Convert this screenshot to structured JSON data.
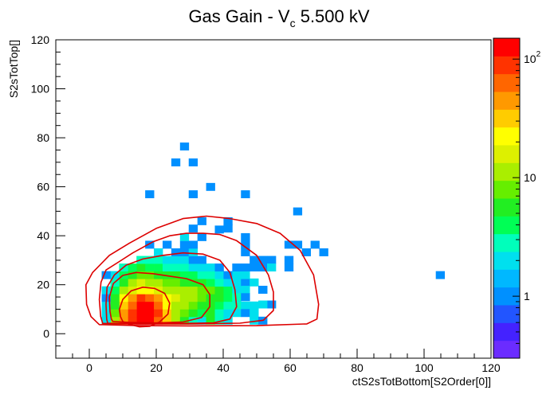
{
  "chart_data": {
    "type": "heatmap",
    "title": {
      "prefix": "Gas Gain - V",
      "subscript": "c",
      "suffix": " 5.500 kV"
    },
    "xlabel": "ctS2sTotBottom[S2Order[0]]",
    "ylabel": "S2sTotTop[]",
    "xlim": [
      -10,
      120
    ],
    "ylim": [
      -10,
      120
    ],
    "x_ticks": [
      0,
      20,
      40,
      60,
      80,
      100,
      120
    ],
    "y_ticks": [
      0,
      20,
      40,
      60,
      80,
      100,
      120
    ],
    "bin_size": [
      2.6,
      3.1
    ],
    "z_scale": "log",
    "z_range": [
      0.3,
      150
    ],
    "z_ticks": [
      {
        "base": "1",
        "exp": ""
      },
      {
        "base": "10",
        "exp": ""
      },
      {
        "base": "10",
        "exp": "2"
      }
    ],
    "palette": [
      "#6b2cff",
      "#4422ff",
      "#2255ff",
      "#0090ff",
      "#00b8ff",
      "#00e0ee",
      "#00ffbb",
      "#00ff55",
      "#22ee22",
      "#66ee00",
      "#aaee00",
      "#ddf000",
      "#ffff00",
      "#ffcc00",
      "#ff9900",
      "#ff6600",
      "#ff3300",
      "#ff0000"
    ],
    "contour_color": "#dd0000",
    "cells": [
      [
        15.4,
        5.4,
        120
      ],
      [
        18,
        5.4,
        110
      ],
      [
        12.8,
        5.4,
        90
      ],
      [
        20.6,
        5.4,
        60
      ],
      [
        10.2,
        5.4,
        40
      ],
      [
        23.2,
        5.4,
        30
      ],
      [
        7.6,
        5.4,
        10
      ],
      [
        25.8,
        5.4,
        12
      ],
      [
        28.4,
        5.4,
        5
      ],
      [
        5,
        5.4,
        2
      ],
      [
        31,
        5.4,
        3
      ],
      [
        33.6,
        5.4,
        2
      ],
      [
        36.2,
        5.4,
        6
      ],
      [
        38.8,
        5.4,
        3
      ],
      [
        41.4,
        5.4,
        2
      ],
      [
        15.4,
        8.5,
        150
      ],
      [
        18,
        8.5,
        130
      ],
      [
        12.8,
        8.5,
        100
      ],
      [
        20.6,
        8.5,
        80
      ],
      [
        10.2,
        8.5,
        40
      ],
      [
        23.2,
        8.5,
        30
      ],
      [
        7.6,
        8.5,
        8
      ],
      [
        25.8,
        8.5,
        12
      ],
      [
        28.4,
        8.5,
        8
      ],
      [
        31,
        8.5,
        6
      ],
      [
        33.6,
        8.5,
        4
      ],
      [
        36.2,
        8.5,
        5
      ],
      [
        38.8,
        8.5,
        3
      ],
      [
        41.4,
        8.5,
        2
      ],
      [
        5,
        8.5,
        2
      ],
      [
        15.4,
        11.6,
        130
      ],
      [
        18,
        11.6,
        110
      ],
      [
        12.8,
        11.6,
        70
      ],
      [
        20.6,
        11.6,
        60
      ],
      [
        10.2,
        11.6,
        30
      ],
      [
        23.2,
        11.6,
        25
      ],
      [
        7.6,
        11.6,
        6
      ],
      [
        25.8,
        11.6,
        10
      ],
      [
        28.4,
        11.6,
        10
      ],
      [
        31,
        11.6,
        8
      ],
      [
        33.6,
        11.6,
        5
      ],
      [
        36.2,
        11.6,
        6
      ],
      [
        38.8,
        11.6,
        4
      ],
      [
        41.4,
        11.6,
        3
      ],
      [
        44,
        11.6,
        3
      ],
      [
        46.6,
        11.6,
        2
      ],
      [
        49.2,
        11.6,
        2
      ],
      [
        5,
        11.6,
        2
      ],
      [
        15.4,
        14.7,
        100
      ],
      [
        18,
        14.7,
        60
      ],
      [
        12.8,
        14.7,
        50
      ],
      [
        20.6,
        14.7,
        40
      ],
      [
        10.2,
        14.7,
        25
      ],
      [
        23.2,
        14.7,
        20
      ],
      [
        7.6,
        14.7,
        5
      ],
      [
        25.8,
        14.7,
        14
      ],
      [
        28.4,
        14.7,
        12
      ],
      [
        31,
        14.7,
        10
      ],
      [
        33.6,
        14.7,
        8
      ],
      [
        36.2,
        14.7,
        6
      ],
      [
        38.8,
        14.7,
        5
      ],
      [
        41.4,
        14.7,
        4
      ],
      [
        44,
        14.7,
        2
      ],
      [
        5,
        14.7,
        1
      ],
      [
        15.4,
        17.8,
        25
      ],
      [
        18,
        17.8,
        20
      ],
      [
        12.8,
        17.8,
        15
      ],
      [
        20.6,
        17.8,
        18
      ],
      [
        10.2,
        17.8,
        10
      ],
      [
        23.2,
        17.8,
        12
      ],
      [
        7.6,
        17.8,
        4
      ],
      [
        25.8,
        17.8,
        10
      ],
      [
        28.4,
        17.8,
        12
      ],
      [
        31,
        17.8,
        10
      ],
      [
        33.6,
        17.8,
        8
      ],
      [
        36.2,
        17.8,
        7
      ],
      [
        38.8,
        17.8,
        5
      ],
      [
        41.4,
        17.8,
        4
      ],
      [
        44,
        17.8,
        2
      ],
      [
        5,
        17.8,
        2
      ],
      [
        15.4,
        20.9,
        15
      ],
      [
        18,
        20.9,
        12
      ],
      [
        12.8,
        20.9,
        10
      ],
      [
        20.6,
        20.9,
        10
      ],
      [
        10.2,
        20.9,
        6
      ],
      [
        23.2,
        20.9,
        8
      ],
      [
        7.6,
        20.9,
        3
      ],
      [
        25.8,
        20.9,
        7
      ],
      [
        28.4,
        20.9,
        6
      ],
      [
        31,
        20.9,
        5
      ],
      [
        33.6,
        20.9,
        5
      ],
      [
        36.2,
        20.9,
        4
      ],
      [
        38.8,
        20.9,
        3
      ],
      [
        41.4,
        20.9,
        2
      ],
      [
        44,
        20.9,
        2
      ],
      [
        46.6,
        20.9,
        1
      ],
      [
        15.4,
        24,
        8
      ],
      [
        18,
        24,
        7
      ],
      [
        12.8,
        24,
        6
      ],
      [
        20.6,
        24,
        6
      ],
      [
        10.2,
        24,
        4
      ],
      [
        23.2,
        24,
        5
      ],
      [
        7.6,
        24,
        2
      ],
      [
        25.8,
        24,
        5
      ],
      [
        28.4,
        24,
        4
      ],
      [
        31,
        24,
        4
      ],
      [
        33.6,
        24,
        3
      ],
      [
        36.2,
        24,
        3
      ],
      [
        38.8,
        24,
        2
      ],
      [
        41.4,
        24,
        1
      ],
      [
        5,
        24,
        1
      ],
      [
        15.4,
        27.1,
        5
      ],
      [
        18,
        27.1,
        4
      ],
      [
        12.8,
        27.1,
        4
      ],
      [
        20.6,
        27.1,
        4
      ],
      [
        10.2,
        27.1,
        3
      ],
      [
        23.2,
        27.1,
        3
      ],
      [
        25.8,
        27.1,
        3
      ],
      [
        28.4,
        27.1,
        3
      ],
      [
        31,
        27.1,
        2
      ],
      [
        33.6,
        27.1,
        2
      ],
      [
        36.2,
        27.1,
        2
      ],
      [
        38.8,
        27.1,
        1
      ],
      [
        15.4,
        30.2,
        3
      ],
      [
        18,
        30.2,
        3
      ],
      [
        20.6,
        30.2,
        3
      ],
      [
        23.2,
        30.2,
        2
      ],
      [
        25.8,
        30.2,
        2
      ],
      [
        28.4,
        30.2,
        2
      ],
      [
        31,
        30.2,
        1
      ],
      [
        33.6,
        30.2,
        1
      ],
      [
        20.6,
        33.3,
        2
      ],
      [
        25.8,
        33.3,
        1
      ],
      [
        28.4,
        33.3,
        1
      ],
      [
        31,
        33.3,
        2
      ],
      [
        18,
        36.4,
        1
      ],
      [
        23.2,
        36.4,
        1
      ],
      [
        28.4,
        36.4,
        1
      ],
      [
        31,
        36.4,
        1
      ],
      [
        28.4,
        39.5,
        2
      ],
      [
        33.6,
        39.5,
        1
      ],
      [
        38.8,
        42.6,
        1
      ],
      [
        46.6,
        36.4,
        1
      ],
      [
        46.6,
        33.3,
        1
      ],
      [
        46.6,
        39.5,
        1
      ],
      [
        49.2,
        30.2,
        1
      ],
      [
        51.8,
        30.2,
        1
      ],
      [
        54.4,
        30.2,
        1
      ],
      [
        49.2,
        27.1,
        1
      ],
      [
        51.8,
        27.1,
        1
      ],
      [
        54.4,
        27.1,
        2
      ],
      [
        44,
        24,
        2
      ],
      [
        46.6,
        24,
        2
      ],
      [
        44,
        27.1,
        1
      ],
      [
        46.6,
        27.1,
        1
      ],
      [
        59.6,
        36.4,
        1
      ],
      [
        62.2,
        36.4,
        1
      ],
      [
        59.6,
        30.2,
        1
      ],
      [
        59.6,
        27.1,
        1
      ],
      [
        64.8,
        33.3,
        1
      ],
      [
        67.4,
        36.4,
        1
      ],
      [
        70,
        33.3,
        1
      ],
      [
        51.8,
        18,
        1
      ],
      [
        49.2,
        21,
        2
      ],
      [
        46.6,
        18,
        2
      ],
      [
        44,
        8.5,
        2
      ],
      [
        46.6,
        8.5,
        1
      ],
      [
        49.2,
        8.5,
        2
      ],
      [
        49.2,
        5.4,
        2
      ],
      [
        51.8,
        5.4,
        1
      ],
      [
        51.8,
        18,
        1
      ],
      [
        54.4,
        12,
        1
      ],
      [
        51.8,
        12,
        2
      ],
      [
        44,
        15,
        3
      ],
      [
        46.6,
        15,
        1
      ],
      [
        104.8,
        24,
        1
      ],
      [
        33.6,
        46,
        1
      ],
      [
        41.4,
        43,
        1
      ],
      [
        31,
        43,
        1
      ],
      [
        41.4,
        46,
        1
      ],
      [
        28.4,
        76.5,
        1
      ],
      [
        25.8,
        70,
        1
      ],
      [
        31,
        70,
        1
      ],
      [
        18,
        57,
        1
      ],
      [
        31,
        57,
        1
      ],
      [
        36.2,
        60,
        1
      ],
      [
        46.6,
        57,
        1
      ],
      [
        62.2,
        50,
        1
      ]
    ],
    "contours": [
      [
        [
          10,
          5
        ],
        [
          12,
          3.8
        ],
        [
          15,
          2.8
        ],
        [
          18,
          3
        ],
        [
          21,
          4.8
        ],
        [
          23.5,
          8
        ],
        [
          24,
          12.5
        ],
        [
          22.5,
          16.5
        ],
        [
          19.5,
          18.5
        ],
        [
          16,
          19
        ],
        [
          12.5,
          17.5
        ],
        [
          10,
          14
        ],
        [
          9,
          10
        ],
        [
          9.3,
          7
        ]
      ],
      [
        [
          7,
          5
        ],
        [
          12,
          4.6
        ],
        [
          20,
          4.4
        ],
        [
          28,
          4.8
        ],
        [
          33.5,
          6.6
        ],
        [
          36,
          11
        ],
        [
          36,
          16
        ],
        [
          34,
          20
        ],
        [
          29,
          22.5
        ],
        [
          24,
          23.5
        ],
        [
          19,
          24.5
        ],
        [
          14,
          25
        ],
        [
          10,
          23.8
        ],
        [
          7.2,
          20.5
        ],
        [
          6,
          15
        ],
        [
          6.2,
          9
        ],
        [
          6.6,
          6
        ]
      ],
      [
        [
          5.5,
          4.3
        ],
        [
          15,
          4.2
        ],
        [
          28,
          4.2
        ],
        [
          37,
          4.4
        ],
        [
          42,
          6
        ],
        [
          44,
          11
        ],
        [
          43.5,
          18
        ],
        [
          42,
          25
        ],
        [
          39,
          30
        ],
        [
          34,
          32.5
        ],
        [
          28,
          33
        ],
        [
          22,
          32
        ],
        [
          16,
          30.5
        ],
        [
          11,
          28
        ],
        [
          7.5,
          24
        ],
        [
          5.3,
          19
        ],
        [
          5,
          12
        ],
        [
          5.2,
          6
        ]
      ],
      [
        [
          4,
          4.2
        ],
        [
          15,
          4
        ],
        [
          30,
          4
        ],
        [
          45,
          4.3
        ],
        [
          52,
          5.5
        ],
        [
          55,
          9.5
        ],
        [
          55,
          17
        ],
        [
          53.5,
          24
        ],
        [
          50,
          32
        ],
        [
          44,
          38
        ],
        [
          39,
          40.5
        ],
        [
          34,
          41
        ],
        [
          29,
          41
        ],
        [
          24,
          40
        ],
        [
          19,
          37.5
        ],
        [
          13,
          33
        ],
        [
          9,
          29.5
        ],
        [
          5,
          26
        ],
        [
          3.5,
          21
        ],
        [
          3,
          14
        ],
        [
          3.4,
          7
        ]
      ],
      [
        [
          3,
          3.7
        ],
        [
          15,
          3.3
        ],
        [
          30,
          3.2
        ],
        [
          50,
          3.3
        ],
        [
          65,
          4
        ],
        [
          68,
          6
        ],
        [
          68.5,
          12
        ],
        [
          67,
          24
        ],
        [
          63,
          34
        ],
        [
          57,
          41
        ],
        [
          50,
          45
        ],
        [
          42,
          47
        ],
        [
          35,
          48
        ],
        [
          28,
          47
        ],
        [
          20,
          43
        ],
        [
          12,
          37
        ],
        [
          6,
          32
        ],
        [
          1,
          25
        ],
        [
          -1,
          20
        ],
        [
          -0.8,
          12
        ],
        [
          0.5,
          7
        ]
      ]
    ]
  }
}
